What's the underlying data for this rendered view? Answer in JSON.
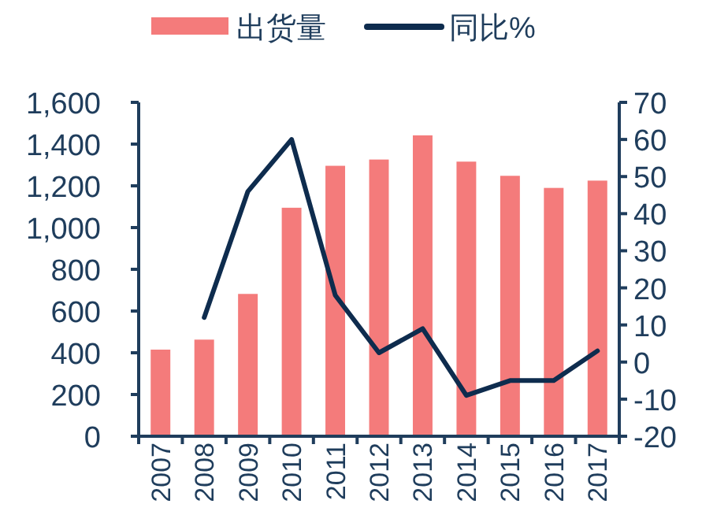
{
  "chart_data": {
    "type": "bar",
    "categories": [
      "2007",
      "2008",
      "2009",
      "2010",
      "2011",
      "2012",
      "2013",
      "2014",
      "2015",
      "2016",
      "2017"
    ],
    "series": [
      {
        "name": "出货量",
        "color": "#f47b7b",
        "values": [
          415,
          463,
          682,
          1095,
          1296,
          1326,
          1442,
          1316,
          1248,
          1190,
          1225
        ]
      },
      {
        "name": "同比%",
        "type": "line",
        "axis": "y2",
        "color": "#0e2c4e",
        "values": [
          null,
          12,
          46,
          60,
          18,
          2.5,
          9,
          -9,
          -5,
          -5,
          3
        ]
      }
    ],
    "ylim": [
      0,
      1600
    ],
    "yticks": [
      0,
      200,
      400,
      600,
      800,
      {
        "value": 1000,
        "label": "1,000"
      },
      {
        "value": 1200,
        "label": "1,200"
      },
      {
        "value": 1400,
        "label": "1,400"
      },
      {
        "value": 1600,
        "label": "1,600"
      }
    ],
    "y2lim": [
      -20,
      70
    ],
    "y2ticks": [
      -20,
      -10,
      0,
      10,
      20,
      30,
      40,
      50,
      60,
      70
    ],
    "legend": "top"
  }
}
